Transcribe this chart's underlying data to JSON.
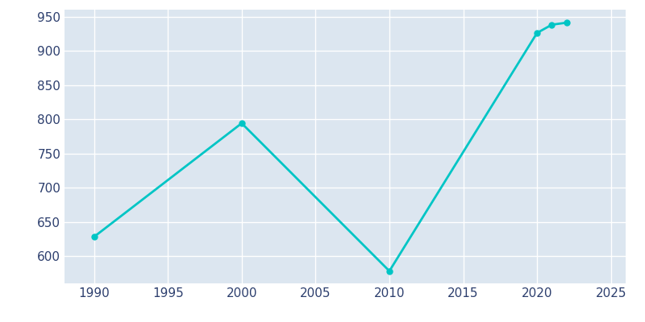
{
  "years": [
    1990,
    2000,
    2010,
    2020,
    2021,
    2022
  ],
  "population": [
    628,
    794,
    578,
    926,
    938,
    941
  ],
  "line_color": "#00C5C5",
  "marker_color": "#00C5C5",
  "plot_background_color": "#dce6f0",
  "figure_background_color": "#ffffff",
  "grid_color": "#ffffff",
  "tick_color": "#2d3f6e",
  "xlim": [
    1988,
    2026
  ],
  "ylim": [
    560,
    960
  ],
  "xticks": [
    1990,
    1995,
    2000,
    2005,
    2010,
    2015,
    2020,
    2025
  ],
  "yticks": [
    600,
    650,
    700,
    750,
    800,
    850,
    900,
    950
  ],
  "line_width": 2.0,
  "marker_size": 5
}
